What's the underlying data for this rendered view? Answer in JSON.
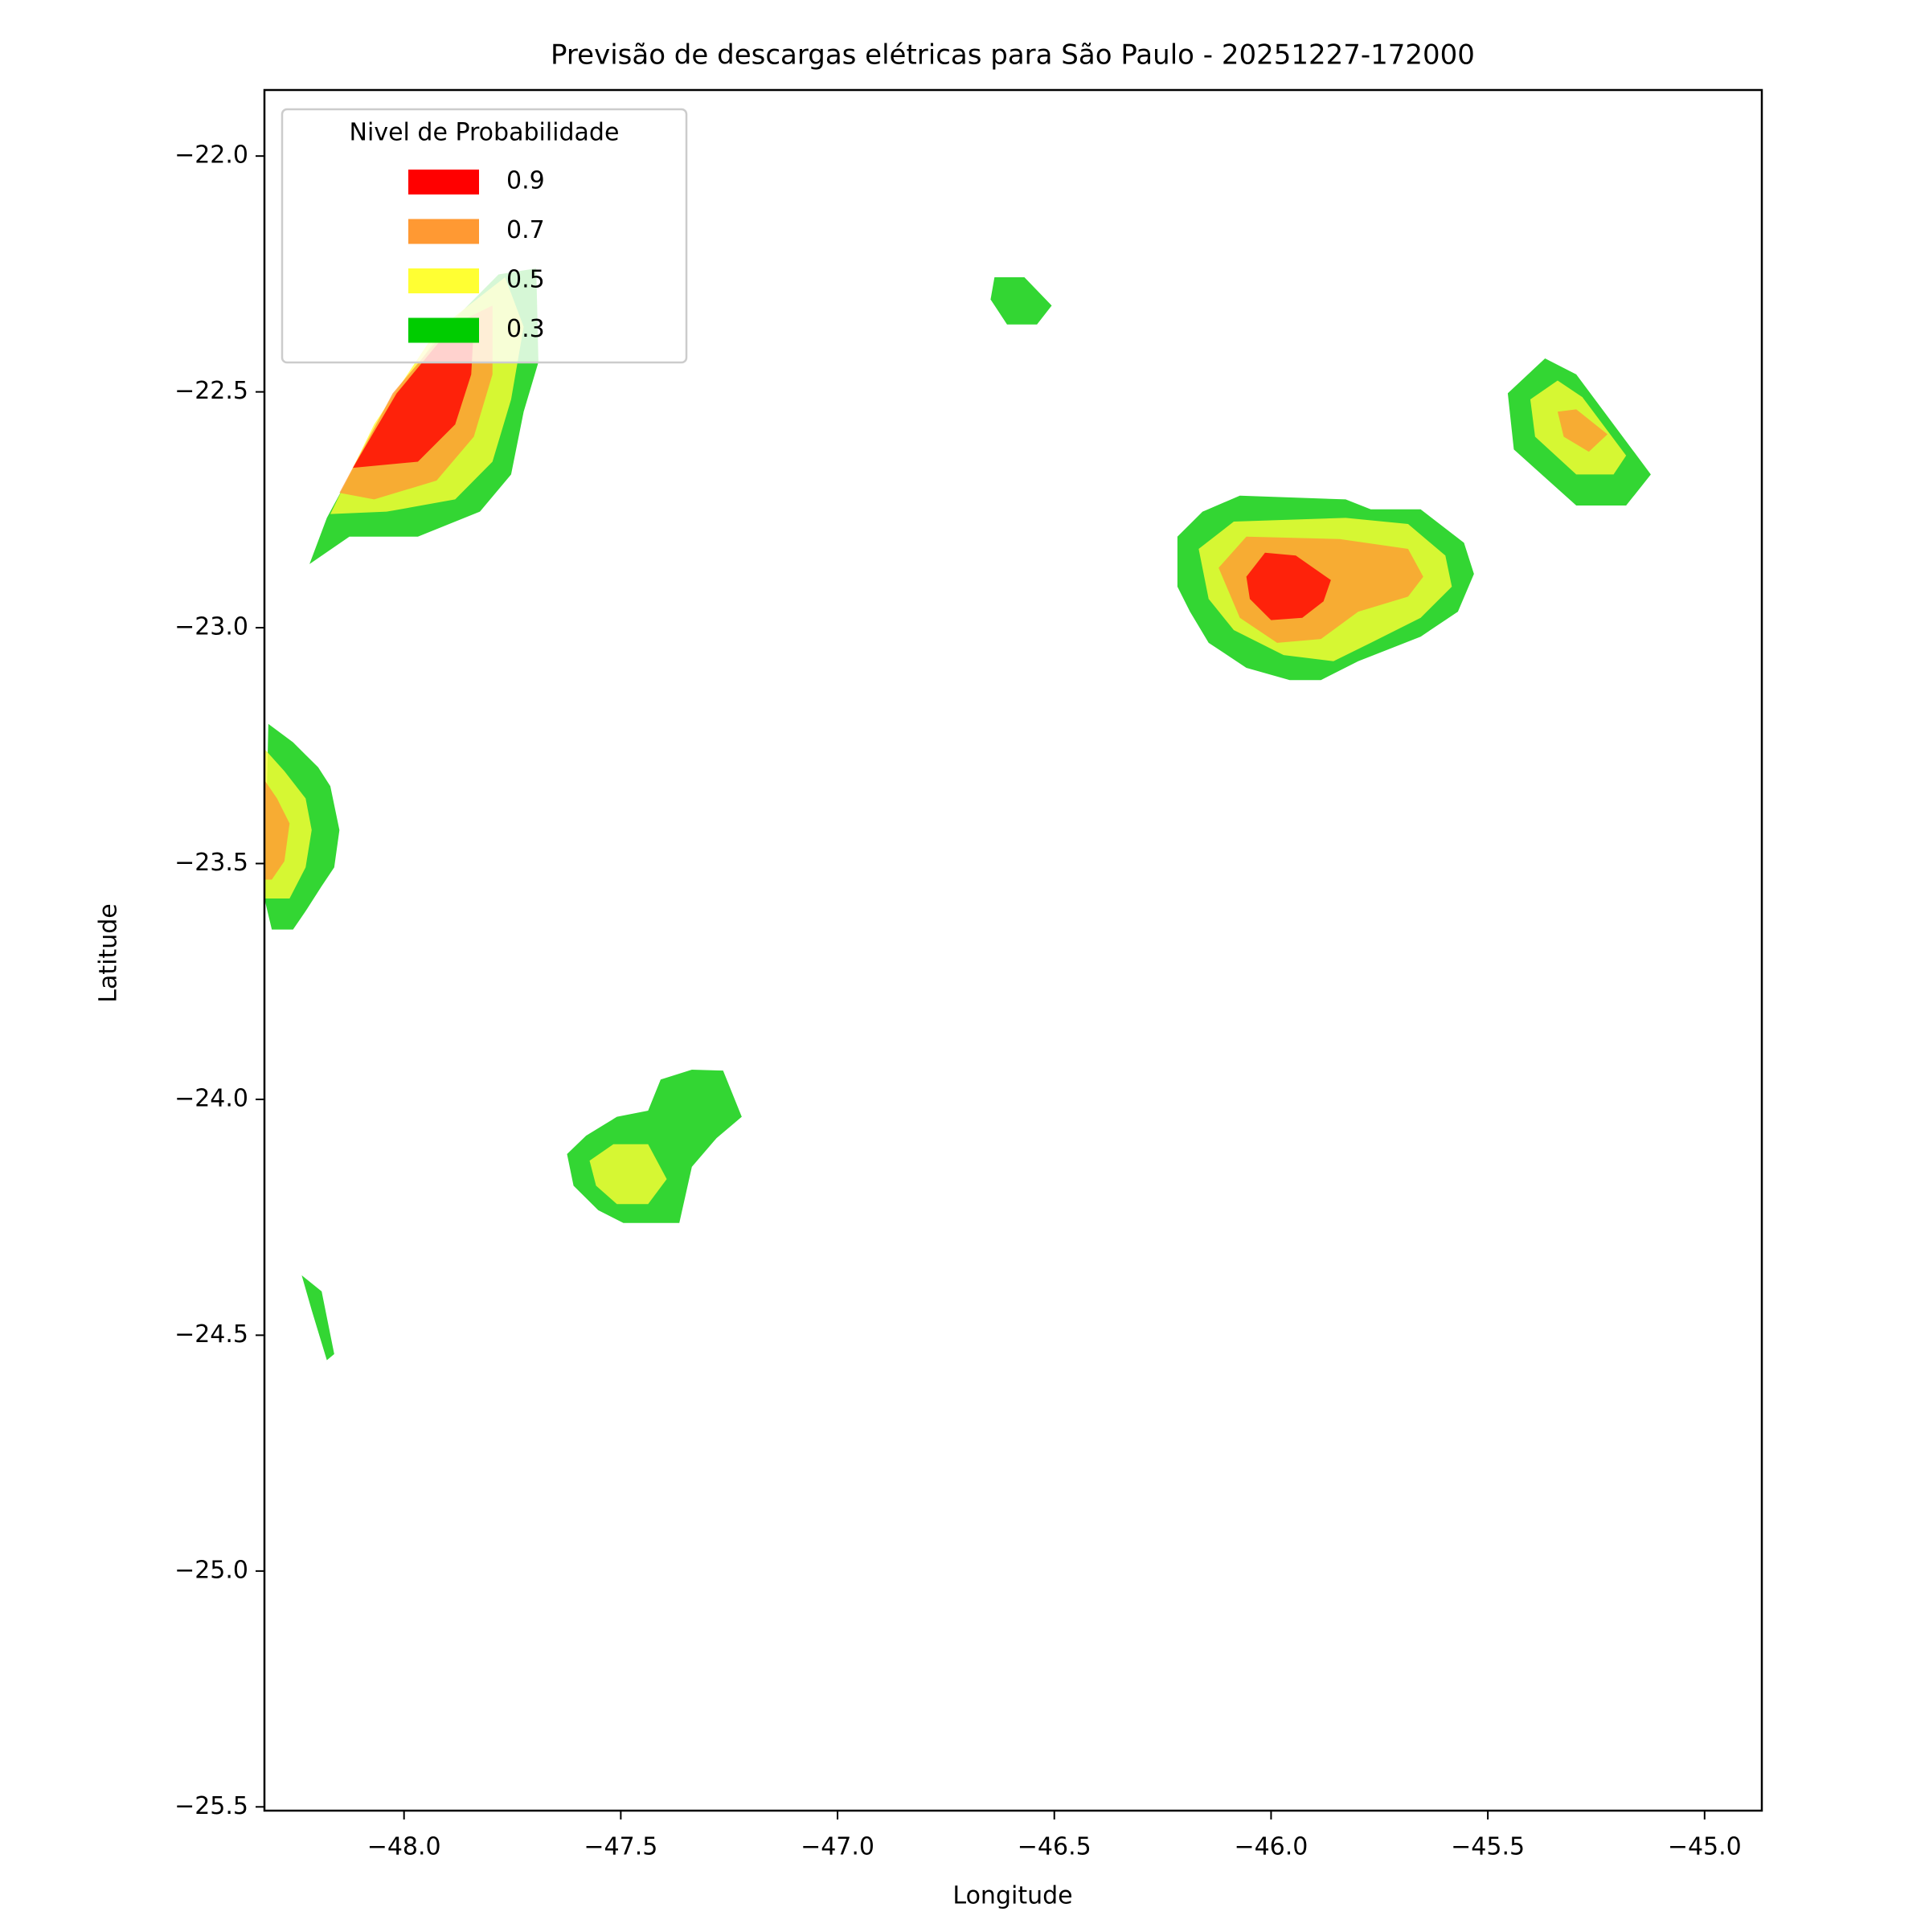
{
  "chart_data": {
    "type": "contour",
    "title": "Previsão de descargas elétricas para São Paulo - 20251227-172000",
    "x_label": "Longitude",
    "y_label": "Latitude",
    "xlim": [
      -48.322,
      -44.868
    ],
    "ylim": [
      -25.508,
      -21.86
    ],
    "xticks": [
      {
        "value": -48,
        "label": "−48.0"
      },
      {
        "value": -47.5,
        "label": "−47.5"
      },
      {
        "value": -47,
        "label": "−47.0"
      },
      {
        "value": -46.5,
        "label": "−46.5"
      },
      {
        "value": -46,
        "label": "−46.0"
      },
      {
        "value": -45.5,
        "label": "−45.5"
      },
      {
        "value": -45,
        "label": "−45.0"
      }
    ],
    "yticks": [
      {
        "value": -22,
        "label": "−22.0"
      },
      {
        "value": -22.5,
        "label": "−22.5"
      },
      {
        "value": -23,
        "label": "−23.0"
      },
      {
        "value": -23.5,
        "label": "−23.5"
      },
      {
        "value": -24,
        "label": "−24.0"
      },
      {
        "value": -24.5,
        "label": "−24.5"
      },
      {
        "value": -25,
        "label": "−25.0"
      },
      {
        "value": -25.5,
        "label": "−25.5"
      }
    ],
    "legend": {
      "title": "Nivel de Probabilidade",
      "loc": "upper left"
    },
    "fill_opacity": 0.8,
    "series": [
      {
        "name": "0.9",
        "color": "#ff0000",
        "regions": [
          [
            [
              -48.118,
              -22.661
            ],
            [
              -48.017,
              -22.503
            ],
            [
              -47.897,
              -22.37
            ],
            [
              -47.839,
              -22.362
            ],
            [
              -47.845,
              -22.463
            ],
            [
              -47.882,
              -22.569
            ],
            [
              -47.968,
              -22.648
            ]
          ],
          [
            [
              -46.057,
              -22.892
            ],
            [
              -46.014,
              -22.841
            ],
            [
              -45.943,
              -22.847
            ],
            [
              -45.862,
              -22.899
            ],
            [
              -45.879,
              -22.944
            ],
            [
              -45.928,
              -22.979
            ],
            [
              -46.0,
              -22.984
            ],
            [
              -46.049,
              -22.939
            ]
          ]
        ]
      },
      {
        "name": "0.7",
        "color": "#ff9933",
        "regions": [
          [
            [
              -48.149,
              -22.714
            ],
            [
              -48.026,
              -22.503
            ],
            [
              -47.897,
              -22.362
            ],
            [
              -47.796,
              -22.317
            ],
            [
              -47.796,
              -22.463
            ],
            [
              -47.839,
              -22.595
            ],
            [
              -47.925,
              -22.688
            ],
            [
              -48.069,
              -22.728
            ]
          ],
          [
            [
              -46.121,
              -22.873
            ],
            [
              -46.057,
              -22.807
            ],
            [
              -45.842,
              -22.812
            ],
            [
              -45.684,
              -22.833
            ],
            [
              -45.649,
              -22.892
            ],
            [
              -45.684,
              -22.934
            ],
            [
              -45.799,
              -22.966
            ],
            [
              -45.885,
              -23.024
            ],
            [
              -45.986,
              -23.032
            ],
            [
              -46.072,
              -22.979
            ]
          ],
          [
            [
              -45.339,
              -22.542
            ],
            [
              -45.296,
              -22.537
            ],
            [
              -45.224,
              -22.59
            ],
            [
              -45.267,
              -22.627
            ],
            [
              -45.325,
              -22.595
            ]
          ],
          [
            [
              -48.322,
              -23.323
            ],
            [
              -48.293,
              -23.362
            ],
            [
              -48.264,
              -23.415
            ],
            [
              -48.276,
              -23.495
            ],
            [
              -48.305,
              -23.534
            ],
            [
              -48.322,
              -23.534
            ]
          ]
        ]
      },
      {
        "name": "0.5",
        "color": "#ffff33",
        "regions": [
          [
            [
              -48.17,
              -22.759
            ],
            [
              -48.069,
              -22.569
            ],
            [
              -47.925,
              -22.37
            ],
            [
              -47.767,
              -22.257
            ],
            [
              -47.724,
              -22.362
            ],
            [
              -47.753,
              -22.516
            ],
            [
              -47.796,
              -22.648
            ],
            [
              -47.882,
              -22.728
            ],
            [
              -48.04,
              -22.754
            ]
          ],
          [
            [
              -46.167,
              -22.833
            ],
            [
              -46.086,
              -22.775
            ],
            [
              -45.828,
              -22.767
            ],
            [
              -45.684,
              -22.78
            ],
            [
              -45.598,
              -22.847
            ],
            [
              -45.583,
              -22.913
            ],
            [
              -45.655,
              -22.979
            ],
            [
              -45.77,
              -23.032
            ],
            [
              -45.856,
              -23.071
            ],
            [
              -45.971,
              -23.058
            ],
            [
              -46.086,
              -23.005
            ],
            [
              -46.144,
              -22.939
            ]
          ],
          [
            [
              -45.402,
              -22.516
            ],
            [
              -45.339,
              -22.476
            ],
            [
              -45.282,
              -22.511
            ],
            [
              -45.181,
              -22.635
            ],
            [
              -45.21,
              -22.675
            ],
            [
              -45.296,
              -22.675
            ],
            [
              -45.391,
              -22.595
            ]
          ],
          [
            [
              -48.322,
              -23.257
            ],
            [
              -48.276,
              -23.304
            ],
            [
              -48.227,
              -23.362
            ],
            [
              -48.213,
              -23.429
            ],
            [
              -48.227,
              -23.508
            ],
            [
              -48.264,
              -23.574
            ],
            [
              -48.322,
              -23.574
            ]
          ],
          [
            [
              -47.572,
              -24.13
            ],
            [
              -47.517,
              -24.095
            ],
            [
              -47.437,
              -24.095
            ],
            [
              -47.394,
              -24.169
            ],
            [
              -47.437,
              -24.222
            ],
            [
              -47.509,
              -24.222
            ],
            [
              -47.557,
              -24.183
            ]
          ]
        ]
      },
      {
        "name": "0.3",
        "color": "#00cc00",
        "regions": [
          [
            [
              -48.218,
              -22.865
            ],
            [
              -48.178,
              -22.767
            ],
            [
              -48.069,
              -22.582
            ],
            [
              -47.925,
              -22.384
            ],
            [
              -47.782,
              -22.251
            ],
            [
              -47.695,
              -22.238
            ],
            [
              -47.69,
              -22.437
            ],
            [
              -47.724,
              -22.542
            ],
            [
              -47.753,
              -22.675
            ],
            [
              -47.825,
              -22.754
            ],
            [
              -47.968,
              -22.807
            ],
            [
              -48.126,
              -22.807
            ]
          ],
          [
            [
              -46.638,
              -22.257
            ],
            [
              -46.569,
              -22.257
            ],
            [
              -46.506,
              -22.317
            ],
            [
              -46.54,
              -22.357
            ],
            [
              -46.609,
              -22.357
            ],
            [
              -46.647,
              -22.304
            ]
          ],
          [
            [
              -46.216,
              -22.807
            ],
            [
              -46.158,
              -22.754
            ],
            [
              -46.072,
              -22.72
            ],
            [
              -45.828,
              -22.728
            ],
            [
              -45.77,
              -22.749
            ],
            [
              -45.655,
              -22.749
            ],
            [
              -45.555,
              -22.82
            ],
            [
              -45.532,
              -22.886
            ],
            [
              -45.569,
              -22.966
            ],
            [
              -45.655,
              -23.019
            ],
            [
              -45.799,
              -23.071
            ],
            [
              -45.885,
              -23.111
            ],
            [
              -45.957,
              -23.111
            ],
            [
              -46.057,
              -23.085
            ],
            [
              -46.144,
              -23.032
            ],
            [
              -46.187,
              -22.966
            ],
            [
              -46.216,
              -22.913
            ]
          ],
          [
            [
              -45.454,
              -22.503
            ],
            [
              -45.368,
              -22.429
            ],
            [
              -45.296,
              -22.463
            ],
            [
              -45.167,
              -22.622
            ],
            [
              -45.124,
              -22.675
            ],
            [
              -45.181,
              -22.741
            ],
            [
              -45.296,
              -22.741
            ],
            [
              -45.44,
              -22.622
            ]
          ],
          [
            [
              -48.313,
              -23.204
            ],
            [
              -48.256,
              -23.243
            ],
            [
              -48.198,
              -23.296
            ],
            [
              -48.17,
              -23.336
            ],
            [
              -48.149,
              -23.429
            ],
            [
              -48.161,
              -23.508
            ],
            [
              -48.19,
              -23.548
            ],
            [
              -48.227,
              -23.601
            ],
            [
              -48.256,
              -23.64
            ],
            [
              -48.305,
              -23.64
            ],
            [
              -48.322,
              -23.574
            ]
          ],
          [
            [
              -47.624,
              -24.116
            ],
            [
              -47.58,
              -24.077
            ],
            [
              -47.509,
              -24.037
            ],
            [
              -47.437,
              -24.024
            ],
            [
              -47.408,
              -23.958
            ],
            [
              -47.336,
              -23.937
            ],
            [
              -47.264,
              -23.939
            ],
            [
              -47.221,
              -24.037
            ],
            [
              -47.279,
              -24.082
            ],
            [
              -47.336,
              -24.143
            ],
            [
              -47.365,
              -24.262
            ],
            [
              -47.494,
              -24.262
            ],
            [
              -47.552,
              -24.235
            ],
            [
              -47.609,
              -24.183
            ]
          ],
          [
            [
              -48.236,
              -24.373
            ],
            [
              -48.19,
              -24.407
            ],
            [
              -48.161,
              -24.54
            ],
            [
              -48.178,
              -24.553
            ],
            [
              -48.213,
              -24.447
            ]
          ]
        ]
      }
    ]
  }
}
